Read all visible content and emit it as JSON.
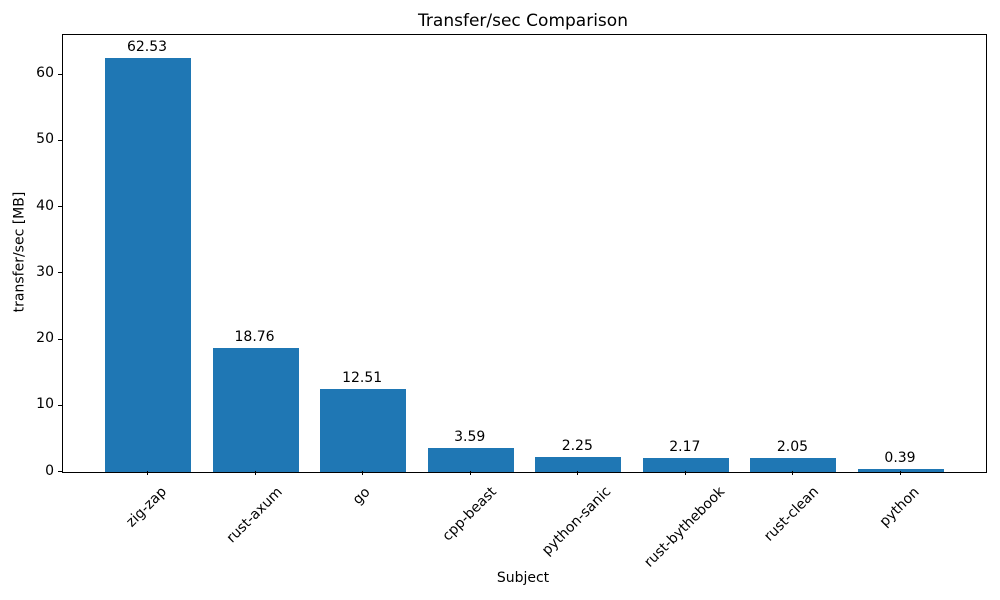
{
  "chart_data": {
    "type": "bar",
    "title": "Transfer/sec Comparison",
    "xlabel": "Subject",
    "ylabel": "transfer/sec [MB]",
    "categories": [
      "zig-zap",
      "rust-axum",
      "go",
      "cpp-beast",
      "python-sanic",
      "rust-bythebook",
      "rust-clean",
      "python"
    ],
    "values": [
      62.53,
      18.76,
      12.51,
      3.59,
      2.25,
      2.17,
      2.05,
      0.39
    ],
    "value_labels": [
      "62.53",
      "18.76",
      "12.51",
      "3.59",
      "2.25",
      "2.17",
      "2.05",
      "0.39"
    ],
    "yticks": [
      "0",
      "10",
      "20",
      "30",
      "40",
      "50",
      "60"
    ],
    "ytick_values": [
      0,
      10,
      20,
      30,
      40,
      50,
      60
    ],
    "ylim": [
      0,
      66
    ],
    "bar_color": "#1f77b4",
    "axis_color": "#000000",
    "grid": false,
    "legend": null,
    "x_tick_rotation_deg": 45
  }
}
